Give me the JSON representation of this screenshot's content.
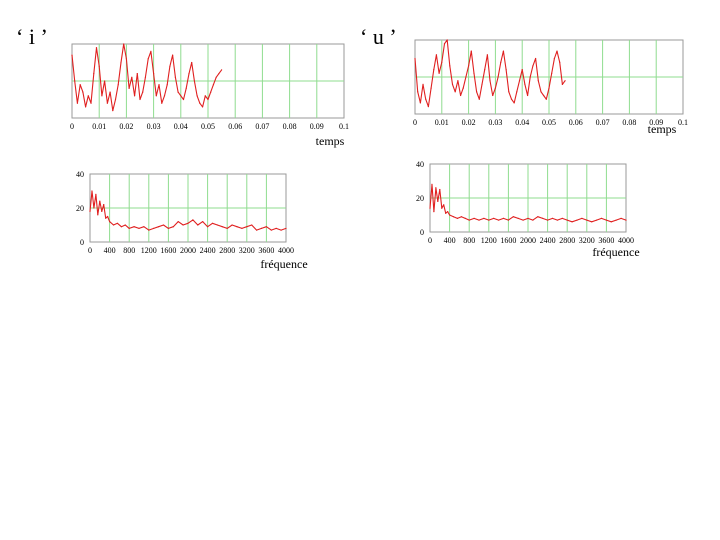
{
  "labels": {
    "vowel_i": "‘ i ’",
    "vowel_u": "‘ u ’"
  },
  "colors": {
    "trace": "#e02020",
    "grid": "#8fdc8f",
    "frame": "#9a9a9a"
  },
  "chart_data": [
    {
      "id": "i-wave",
      "type": "line",
      "title": "",
      "xlabel": "temps",
      "ylabel": "",
      "xlim": [
        0,
        0.1
      ],
      "ylim": [
        0,
        1
      ],
      "grid": true,
      "show_y_ticks": false,
      "x_ticks": [
        0,
        0.01,
        0.02,
        0.03,
        0.04,
        0.05,
        0.06,
        0.07,
        0.08,
        0.09,
        0.1
      ],
      "x_tick_labels": [
        "0",
        "0.01",
        "0.02",
        "0.03",
        "0.04",
        "0.05",
        "0.06",
        "0.07",
        "0.08",
        "0.09",
        "0.1"
      ],
      "series": [
        {
          "x": [
            0,
            0.001,
            0.002,
            0.003,
            0.004,
            0.005,
            0.006,
            0.007,
            0.008,
            0.009,
            0.01,
            0.011,
            0.012,
            0.013,
            0.014,
            0.015,
            0.016,
            0.017,
            0.018,
            0.019,
            0.02,
            0.021,
            0.022,
            0.023,
            0.024,
            0.025,
            0.026,
            0.027,
            0.028,
            0.029,
            0.03,
            0.031,
            0.032,
            0.033,
            0.034,
            0.035,
            0.036,
            0.037,
            0.038,
            0.039,
            0.04,
            0.041,
            0.042,
            0.043,
            0.044,
            0.045,
            0.046,
            0.047,
            0.048,
            0.049,
            0.05,
            0.051,
            0.052,
            0.053,
            0.054,
            0.055
          ],
          "y": [
            0.85,
            0.5,
            0.2,
            0.45,
            0.35,
            0.15,
            0.3,
            0.2,
            0.6,
            0.95,
            0.7,
            0.3,
            0.5,
            0.2,
            0.35,
            0.1,
            0.25,
            0.45,
            0.75,
            1.0,
            0.8,
            0.4,
            0.55,
            0.3,
            0.6,
            0.25,
            0.35,
            0.55,
            0.8,
            0.9,
            0.6,
            0.3,
            0.45,
            0.2,
            0.3,
            0.45,
            0.7,
            0.85,
            0.55,
            0.35,
            0.3,
            0.25,
            0.4,
            0.6,
            0.75,
            0.5,
            0.3,
            0.2,
            0.15,
            0.3,
            0.25,
            0.35,
            0.45,
            0.55,
            0.6,
            0.65
          ]
        }
      ]
    },
    {
      "id": "u-wave",
      "type": "line",
      "title": "",
      "xlabel": "temps",
      "ylabel": "",
      "xlim": [
        0,
        0.1
      ],
      "ylim": [
        0,
        1
      ],
      "grid": true,
      "show_y_ticks": false,
      "x_ticks": [
        0,
        0.01,
        0.02,
        0.03,
        0.04,
        0.05,
        0.06,
        0.07,
        0.08,
        0.09,
        0.1
      ],
      "x_tick_labels": [
        "0",
        "0.01",
        "0.02",
        "0.03",
        "0.04",
        "0.05",
        "0.06",
        "0.07",
        "0.08",
        "0.09",
        "0.1"
      ],
      "series": [
        {
          "x": [
            0,
            0.001,
            0.002,
            0.003,
            0.004,
            0.005,
            0.006,
            0.007,
            0.008,
            0.009,
            0.01,
            0.011,
            0.012,
            0.013,
            0.014,
            0.015,
            0.016,
            0.017,
            0.018,
            0.019,
            0.02,
            0.021,
            0.022,
            0.023,
            0.024,
            0.025,
            0.026,
            0.027,
            0.028,
            0.029,
            0.03,
            0.031,
            0.032,
            0.033,
            0.034,
            0.035,
            0.036,
            0.037,
            0.038,
            0.039,
            0.04,
            0.041,
            0.042,
            0.043,
            0.044,
            0.045,
            0.046,
            0.047,
            0.048,
            0.049,
            0.05,
            0.051,
            0.052,
            0.053,
            0.054,
            0.055,
            0.056
          ],
          "y": [
            0.75,
            0.3,
            0.15,
            0.4,
            0.2,
            0.1,
            0.35,
            0.6,
            0.8,
            0.55,
            0.7,
            0.95,
            1.0,
            0.65,
            0.4,
            0.3,
            0.45,
            0.25,
            0.35,
            0.5,
            0.65,
            0.85,
            0.55,
            0.3,
            0.2,
            0.4,
            0.6,
            0.8,
            0.45,
            0.25,
            0.35,
            0.5,
            0.7,
            0.85,
            0.6,
            0.3,
            0.2,
            0.15,
            0.3,
            0.45,
            0.6,
            0.4,
            0.25,
            0.5,
            0.65,
            0.75,
            0.45,
            0.3,
            0.25,
            0.2,
            0.35,
            0.55,
            0.75,
            0.85,
            0.7,
            0.4,
            0.45
          ]
        }
      ]
    },
    {
      "id": "i-spectrum",
      "type": "line",
      "title": "",
      "xlabel": "fréquence",
      "ylabel": "",
      "xlim": [
        0,
        4000
      ],
      "ylim": [
        0,
        40
      ],
      "grid": true,
      "show_y_ticks": true,
      "x_ticks": [
        0,
        400,
        800,
        1200,
        1600,
        2000,
        2400,
        2800,
        3200,
        3600,
        4000
      ],
      "x_tick_labels": [
        "0",
        "400",
        "800",
        "1200",
        "1600",
        "2000",
        "2400",
        "2800",
        "3200",
        "3600",
        "4000"
      ],
      "y_ticks": [
        0,
        20,
        40
      ],
      "y_tick_labels": [
        "0",
        "20",
        "40"
      ],
      "series": [
        {
          "x": [
            0,
            40,
            80,
            120,
            160,
            200,
            240,
            280,
            320,
            360,
            400,
            480,
            560,
            640,
            720,
            800,
            900,
            1000,
            1100,
            1200,
            1300,
            1400,
            1500,
            1600,
            1700,
            1800,
            1900,
            2000,
            2100,
            2200,
            2300,
            2400,
            2500,
            2600,
            2700,
            2800,
            2900,
            3000,
            3100,
            3200,
            3300,
            3400,
            3500,
            3600,
            3700,
            3800,
            3900,
            4000
          ],
          "y": [
            18,
            30,
            20,
            28,
            16,
            24,
            18,
            22,
            14,
            15,
            12,
            10,
            11,
            9,
            10,
            8,
            9,
            8,
            9,
            7,
            8,
            9,
            10,
            8,
            9,
            12,
            10,
            11,
            13,
            10,
            12,
            9,
            11,
            10,
            9,
            8,
            10,
            9,
            8,
            9,
            10,
            7,
            8,
            9,
            7,
            8,
            7,
            8
          ]
        }
      ]
    },
    {
      "id": "u-spectrum",
      "type": "line",
      "title": "",
      "xlabel": "fréquence",
      "ylabel": "",
      "xlim": [
        0,
        4000
      ],
      "ylim": [
        0,
        40
      ],
      "grid": true,
      "show_y_ticks": true,
      "x_ticks": [
        0,
        400,
        800,
        1200,
        1600,
        2000,
        2400,
        2800,
        3200,
        3600,
        4000
      ],
      "x_tick_labels": [
        "0",
        "400",
        "800",
        "1200",
        "1600",
        "2000",
        "2400",
        "2800",
        "3200",
        "3600",
        "4000"
      ],
      "y_ticks": [
        0,
        20,
        40
      ],
      "y_tick_labels": [
        "0",
        "20",
        "40"
      ],
      "series": [
        {
          "x": [
            0,
            40,
            80,
            120,
            160,
            200,
            240,
            280,
            320,
            360,
            400,
            480,
            560,
            640,
            720,
            800,
            900,
            1000,
            1100,
            1200,
            1300,
            1400,
            1500,
            1600,
            1700,
            1800,
            1900,
            2000,
            2100,
            2200,
            2300,
            2400,
            2500,
            2600,
            2700,
            2800,
            2900,
            3000,
            3100,
            3200,
            3300,
            3400,
            3500,
            3600,
            3700,
            3800,
            3900,
            4000
          ],
          "y": [
            14,
            28,
            12,
            26,
            18,
            25,
            14,
            16,
            11,
            12,
            10,
            9,
            8,
            9,
            8,
            7,
            8,
            7,
            8,
            7,
            8,
            7,
            8,
            7,
            9,
            8,
            7,
            8,
            7,
            9,
            8,
            7,
            8,
            7,
            8,
            7,
            6,
            7,
            8,
            7,
            6,
            7,
            8,
            7,
            6,
            7,
            8,
            7
          ]
        }
      ]
    }
  ]
}
